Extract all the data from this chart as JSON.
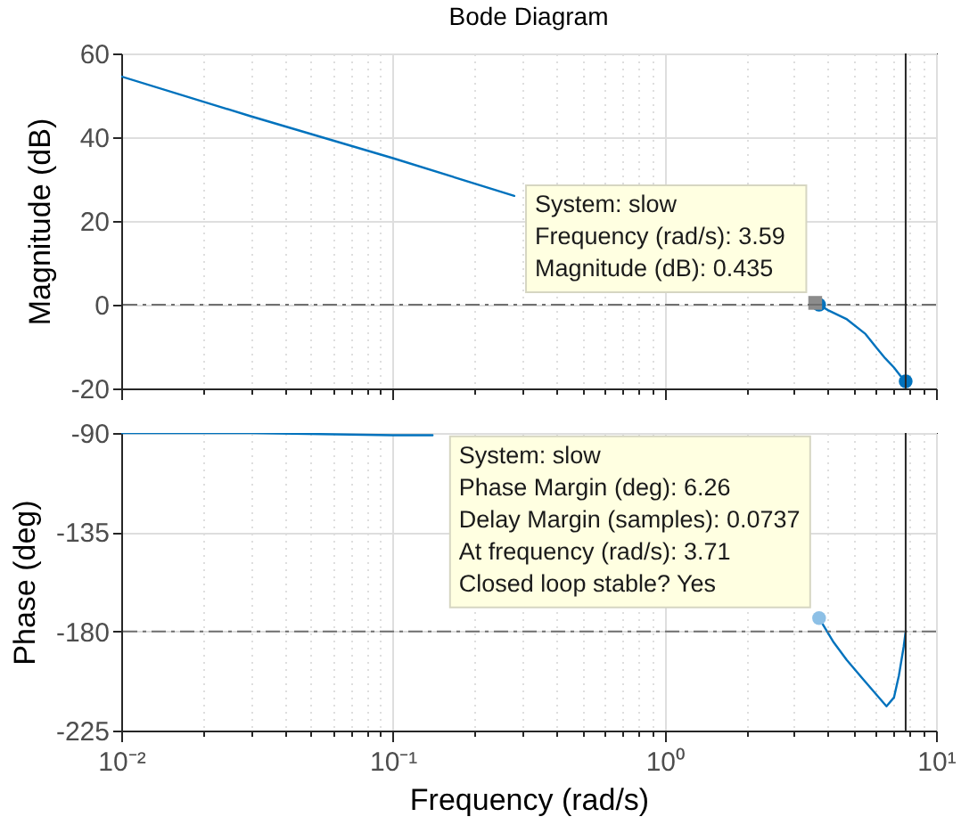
{
  "chart_data": [
    {
      "type": "line",
      "title": "Bode Diagram",
      "ylabel": "Magnitude (dB)",
      "log": "x",
      "tick_labels": "y",
      "grid": true,
      "xlim": [
        0.01,
        10
      ],
      "xticks": [
        0.01,
        {
          "value": 0.02,
          "label": null
        },
        {
          "value": 0.03,
          "label": null
        },
        {
          "value": 0.04,
          "label": null
        },
        {
          "value": 0.05,
          "label": null
        },
        {
          "value": 0.06,
          "label": null
        },
        {
          "value": 0.07,
          "label": null
        },
        {
          "value": 0.08,
          "label": null
        },
        {
          "value": 0.09,
          "label": null
        },
        0.1,
        {
          "value": 0.2,
          "label": null
        },
        {
          "value": 0.3,
          "label": null
        },
        {
          "value": 0.4,
          "label": null
        },
        {
          "value": 0.5,
          "label": null
        },
        {
          "value": 0.6,
          "label": null
        },
        {
          "value": 0.7,
          "label": null
        },
        {
          "value": 0.8,
          "label": null
        },
        {
          "value": 0.9,
          "label": null
        },
        1,
        {
          "value": 2,
          "label": null
        },
        {
          "value": 3,
          "label": null
        },
        {
          "value": 4,
          "label": null
        },
        {
          "value": 5,
          "label": null
        },
        {
          "value": 6,
          "label": null
        },
        {
          "value": 7,
          "label": null
        },
        {
          "value": 8,
          "label": null
        },
        {
          "value": 9,
          "label": null
        },
        10
      ],
      "ylim": [
        -20,
        60
      ],
      "yticks": [
        -20,
        0,
        20,
        40,
        60
      ],
      "series": [
        {
          "color": "#0072bd",
          "x": [
            0.01,
            0.03,
            0.1,
            0.28,
            0.5,
            3.59,
            3.71,
            4,
            4.7,
            5.5,
            6.07,
            6.5,
            7,
            7.4,
            7.73
          ],
          "values": [
            54.5,
            45,
            35,
            26,
            null,
            0.435,
            0,
            -1.3,
            -3.5,
            -7,
            -10.5,
            -12.8,
            -15,
            -17,
            -18.3
          ]
        },
        {
          "type": "scatter",
          "marker": "circle",
          "color": "#0072bd",
          "x": [
            3.71
          ],
          "values": [
            0
          ]
        },
        {
          "type": "scatter",
          "marker": "square",
          "color": "#8c8c8c",
          "x": [
            3.59
          ],
          "values": [
            0.435
          ]
        },
        {
          "type": "scatter",
          "marker": "circle",
          "color": "#0072bd",
          "x": [
            7.73
          ],
          "values": [
            -18.3
          ]
        }
      ],
      "ref_lines": [
        {
          "axis": "y",
          "value": 0,
          "color": "#707070",
          "line_style": "dashed"
        },
        {
          "axis": "x",
          "value": 7.73,
          "color": "#262626",
          "line_style": "solid"
        }
      ],
      "annotations": [
        {
          "text": "System: slow\nFrequency (rad/s): 3.59\nMagnitude (dB): 0.435",
          "x": 3.59,
          "y": 0.435
        }
      ]
    },
    {
      "type": "line",
      "xlabel": "Frequency  (rad/s)",
      "ylabel": "Phase (deg)",
      "log": "x",
      "grid": true,
      "xlim": [
        0.01,
        10
      ],
      "xticks": [
        {
          "value": 0.01,
          "label": "10⁻²"
        },
        {
          "value": 0.02,
          "label": null
        },
        {
          "value": 0.03,
          "label": null
        },
        {
          "value": 0.04,
          "label": null
        },
        {
          "value": 0.05,
          "label": null
        },
        {
          "value": 0.06,
          "label": null
        },
        {
          "value": 0.07,
          "label": null
        },
        {
          "value": 0.08,
          "label": null
        },
        {
          "value": 0.09,
          "label": null
        },
        {
          "value": 0.1,
          "label": "10⁻¹"
        },
        {
          "value": 0.2,
          "label": null
        },
        {
          "value": 0.3,
          "label": null
        },
        {
          "value": 0.4,
          "label": null
        },
        {
          "value": 0.5,
          "label": null
        },
        {
          "value": 0.6,
          "label": null
        },
        {
          "value": 0.7,
          "label": null
        },
        {
          "value": 0.8,
          "label": null
        },
        {
          "value": 0.9,
          "label": null
        },
        {
          "value": 1,
          "label": "10⁰"
        },
        {
          "value": 2,
          "label": null
        },
        {
          "value": 3,
          "label": null
        },
        {
          "value": 4,
          "label": null
        },
        {
          "value": 5,
          "label": null
        },
        {
          "value": 6,
          "label": null
        },
        {
          "value": 7,
          "label": null
        },
        {
          "value": 8,
          "label": null
        },
        {
          "value": 9,
          "label": null
        },
        {
          "value": 10,
          "label": "10¹"
        }
      ],
      "ylim": [
        -225,
        -90
      ],
      "yticks": [
        -225,
        -180,
        -135,
        -90
      ],
      "series": [
        {
          "color": "#0072bd",
          "x": [
            0.01,
            0.03,
            0.1,
            0.14,
            0.3,
            3.71,
            4.2,
            4.69,
            5.5,
            6.57,
            7,
            7.3,
            7.6,
            7.73
          ],
          "values": [
            -90,
            -90,
            -91,
            -91,
            null,
            -174,
            -185,
            -193,
            -203,
            -214,
            -210,
            -200,
            -187,
            -180
          ]
        },
        {
          "type": "scatter",
          "marker": "circle",
          "color": "#8dc0e6",
          "x": [
            3.71
          ],
          "values": [
            -174
          ]
        }
      ],
      "ref_lines": [
        {
          "axis": "y",
          "value": -180,
          "color": "#707070",
          "line_style": "dashed"
        },
        {
          "axis": "x",
          "value": 7.73,
          "color": "#262626",
          "line_style": "solid"
        }
      ],
      "annotations": [
        {
          "text": "System: slow\nPhase Margin (deg): 6.26\nDelay Margin (samples): 0.0737\nAt frequency (rad/s): 3.71\nClosed loop stable? Yes",
          "x": 3.71,
          "y": -174
        }
      ]
    }
  ]
}
